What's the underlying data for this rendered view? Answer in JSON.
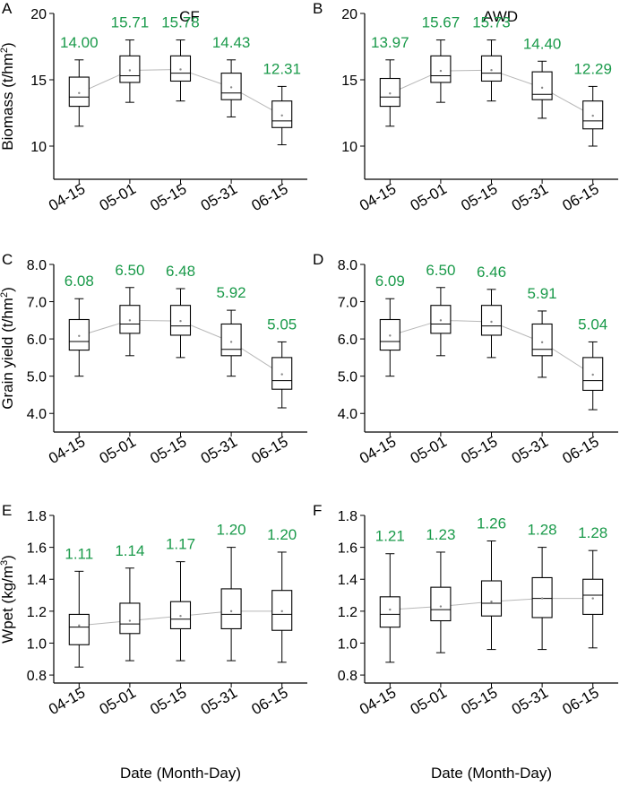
{
  "colors": {
    "axis": "#000000",
    "mean_label": "#1a9a4a",
    "trend_line": "#b8b8b8",
    "box": "#000000"
  },
  "x_label": "Date (Month-Day)",
  "chart_data": [
    {
      "type": "box",
      "panel": "A",
      "title": "CF",
      "ylabel": "Biomass (t/hm²)",
      "ylabel_main": "Biomass (t/hm",
      "ylabel_sup": "2",
      "ylabel_end": ")",
      "ylim": [
        7.5,
        20
      ],
      "yticks": [
        10,
        15,
        20
      ],
      "ytick_labels": [
        "10",
        "15",
        "20"
      ],
      "categories": [
        "04-15",
        "05-01",
        "05-15",
        "05-31",
        "06-15"
      ],
      "boxes": [
        {
          "whislo": 11.5,
          "q1": 13.0,
          "med": 13.7,
          "q3": 15.2,
          "whishi": 16.5,
          "mean": 14.0
        },
        {
          "whislo": 13.3,
          "q1": 14.8,
          "med": 15.3,
          "q3": 16.8,
          "whishi": 18.0,
          "mean": 15.71
        },
        {
          "whislo": 13.4,
          "q1": 14.9,
          "med": 15.5,
          "q3": 16.8,
          "whishi": 18.0,
          "mean": 15.78
        },
        {
          "whislo": 12.2,
          "q1": 13.5,
          "med": 14.0,
          "q3": 15.5,
          "whishi": 16.5,
          "mean": 14.43
        },
        {
          "whislo": 10.1,
          "q1": 11.4,
          "med": 11.9,
          "q3": 13.4,
          "whishi": 14.5,
          "mean": 12.31
        }
      ],
      "mean_labels": [
        "14.00",
        "15.71",
        "15.78",
        "14.43",
        "12.31"
      ]
    },
    {
      "type": "box",
      "panel": "B",
      "title": "AWD",
      "ylabel": "",
      "ylabel_main": "",
      "ylabel_sup": "",
      "ylabel_end": "",
      "ylim": [
        7.5,
        20
      ],
      "yticks": [
        10,
        15,
        20
      ],
      "ytick_labels": [
        "10",
        "15",
        "20"
      ],
      "categories": [
        "04-15",
        "05-01",
        "05-15",
        "05-31",
        "06-15"
      ],
      "boxes": [
        {
          "whislo": 11.5,
          "q1": 13.0,
          "med": 13.7,
          "q3": 15.1,
          "whishi": 16.5,
          "mean": 13.97
        },
        {
          "whislo": 13.3,
          "q1": 14.8,
          "med": 15.3,
          "q3": 16.8,
          "whishi": 18.0,
          "mean": 15.67
        },
        {
          "whislo": 13.4,
          "q1": 14.9,
          "med": 15.5,
          "q3": 16.8,
          "whishi": 18.0,
          "mean": 15.73
        },
        {
          "whislo": 12.1,
          "q1": 13.5,
          "med": 13.9,
          "q3": 15.6,
          "whishi": 16.4,
          "mean": 14.4
        },
        {
          "whislo": 10.0,
          "q1": 11.3,
          "med": 11.9,
          "q3": 13.4,
          "whishi": 14.5,
          "mean": 12.29
        }
      ],
      "mean_labels": [
        "13.97",
        "15.67",
        "15.73",
        "14.40",
        "12.29"
      ]
    },
    {
      "type": "box",
      "panel": "C",
      "title": "",
      "ylabel": "Grain yield (t/hm²)",
      "ylabel_main": "Grain yield (t/hm",
      "ylabel_sup": "2",
      "ylabel_end": ")",
      "ylim": [
        3.5,
        8.0
      ],
      "yticks": [
        4.0,
        5.0,
        6.0,
        7.0,
        8.0
      ],
      "ytick_labels": [
        "4.0",
        "5.0",
        "6.0",
        "7.0",
        "8.0"
      ],
      "categories": [
        "04-15",
        "05-01",
        "05-15",
        "05-31",
        "06-15"
      ],
      "boxes": [
        {
          "whislo": 5.0,
          "q1": 5.7,
          "med": 5.93,
          "q3": 6.52,
          "whishi": 7.08,
          "mean": 6.08
        },
        {
          "whislo": 5.55,
          "q1": 6.15,
          "med": 6.4,
          "q3": 6.9,
          "whishi": 7.38,
          "mean": 6.5
        },
        {
          "whislo": 5.5,
          "q1": 6.1,
          "med": 6.35,
          "q3": 6.9,
          "whishi": 7.35,
          "mean": 6.48
        },
        {
          "whislo": 5.0,
          "q1": 5.55,
          "med": 5.72,
          "q3": 6.4,
          "whishi": 6.77,
          "mean": 5.92
        },
        {
          "whislo": 4.15,
          "q1": 4.65,
          "med": 4.88,
          "q3": 5.5,
          "whishi": 5.92,
          "mean": 5.05
        }
      ],
      "mean_labels": [
        "6.08",
        "6.50",
        "6.48",
        "5.92",
        "5.05"
      ]
    },
    {
      "type": "box",
      "panel": "D",
      "title": "",
      "ylabel": "",
      "ylabel_main": "",
      "ylabel_sup": "",
      "ylabel_end": "",
      "ylim": [
        3.5,
        8.0
      ],
      "yticks": [
        4.0,
        5.0,
        6.0,
        7.0,
        8.0
      ],
      "ytick_labels": [
        "4.0",
        "5.0",
        "6.0",
        "7.0",
        "8.0"
      ],
      "categories": [
        "04-15",
        "05-01",
        "05-15",
        "05-31",
        "06-15"
      ],
      "boxes": [
        {
          "whislo": 5.0,
          "q1": 5.7,
          "med": 5.93,
          "q3": 6.52,
          "whishi": 7.08,
          "mean": 6.09
        },
        {
          "whislo": 5.55,
          "q1": 6.15,
          "med": 6.4,
          "q3": 6.9,
          "whishi": 7.38,
          "mean": 6.5
        },
        {
          "whislo": 5.5,
          "q1": 6.1,
          "med": 6.35,
          "q3": 6.9,
          "whishi": 7.33,
          "mean": 6.46
        },
        {
          "whislo": 4.97,
          "q1": 5.55,
          "med": 5.72,
          "q3": 6.4,
          "whishi": 6.75,
          "mean": 5.91
        },
        {
          "whislo": 4.1,
          "q1": 4.62,
          "med": 4.88,
          "q3": 5.5,
          "whishi": 5.92,
          "mean": 5.04
        }
      ],
      "mean_labels": [
        "6.09",
        "6.50",
        "6.46",
        "5.91",
        "5.04"
      ]
    },
    {
      "type": "box",
      "panel": "E",
      "title": "",
      "ylabel": "Wpet (kg/m³)",
      "ylabel_main": "Wpet (kg/m",
      "ylabel_sup": "3",
      "ylabel_end": ")",
      "ylim": [
        0.75,
        1.8
      ],
      "yticks": [
        0.8,
        1.0,
        1.2,
        1.4,
        1.6,
        1.8
      ],
      "ytick_labels": [
        "0.8",
        "1.0",
        "1.2",
        "1.4",
        "1.6",
        "1.8"
      ],
      "categories": [
        "04-15",
        "05-01",
        "05-15",
        "05-31",
        "06-15"
      ],
      "boxes": [
        {
          "whislo": 0.85,
          "q1": 0.99,
          "med": 1.1,
          "q3": 1.18,
          "whishi": 1.45,
          "mean": 1.11
        },
        {
          "whislo": 0.89,
          "q1": 1.06,
          "med": 1.12,
          "q3": 1.25,
          "whishi": 1.47,
          "mean": 1.14
        },
        {
          "whislo": 0.89,
          "q1": 1.09,
          "med": 1.15,
          "q3": 1.26,
          "whishi": 1.51,
          "mean": 1.17
        },
        {
          "whislo": 0.89,
          "q1": 1.09,
          "med": 1.18,
          "q3": 1.34,
          "whishi": 1.6,
          "mean": 1.2
        },
        {
          "whislo": 0.88,
          "q1": 1.08,
          "med": 1.18,
          "q3": 1.33,
          "whishi": 1.57,
          "mean": 1.2
        }
      ],
      "mean_labels": [
        "1.11",
        "1.14",
        "1.17",
        "1.20",
        "1.20"
      ]
    },
    {
      "type": "box",
      "panel": "F",
      "title": "",
      "ylabel": "",
      "ylabel_main": "",
      "ylabel_sup": "",
      "ylabel_end": "",
      "ylim": [
        0.75,
        1.8
      ],
      "yticks": [
        0.8,
        1.0,
        1.2,
        1.4,
        1.6,
        1.8
      ],
      "ytick_labels": [
        "0.8",
        "1.0",
        "1.2",
        "1.4",
        "1.6",
        "1.8"
      ],
      "categories": [
        "04-15",
        "05-01",
        "05-15",
        "05-31",
        "06-15"
      ],
      "boxes": [
        {
          "whislo": 0.88,
          "q1": 1.1,
          "med": 1.18,
          "q3": 1.29,
          "whishi": 1.56,
          "mean": 1.21
        },
        {
          "whislo": 0.94,
          "q1": 1.14,
          "med": 1.21,
          "q3": 1.35,
          "whishi": 1.57,
          "mean": 1.23
        },
        {
          "whislo": 0.96,
          "q1": 1.17,
          "med": 1.25,
          "q3": 1.39,
          "whishi": 1.64,
          "mean": 1.26
        },
        {
          "whislo": 0.96,
          "q1": 1.16,
          "med": 1.28,
          "q3": 1.41,
          "whishi": 1.6,
          "mean": 1.28
        },
        {
          "whislo": 0.97,
          "q1": 1.18,
          "med": 1.3,
          "q3": 1.4,
          "whishi": 1.58,
          "mean": 1.28
        }
      ],
      "mean_labels": [
        "1.21",
        "1.23",
        "1.26",
        "1.28",
        "1.28"
      ]
    }
  ]
}
